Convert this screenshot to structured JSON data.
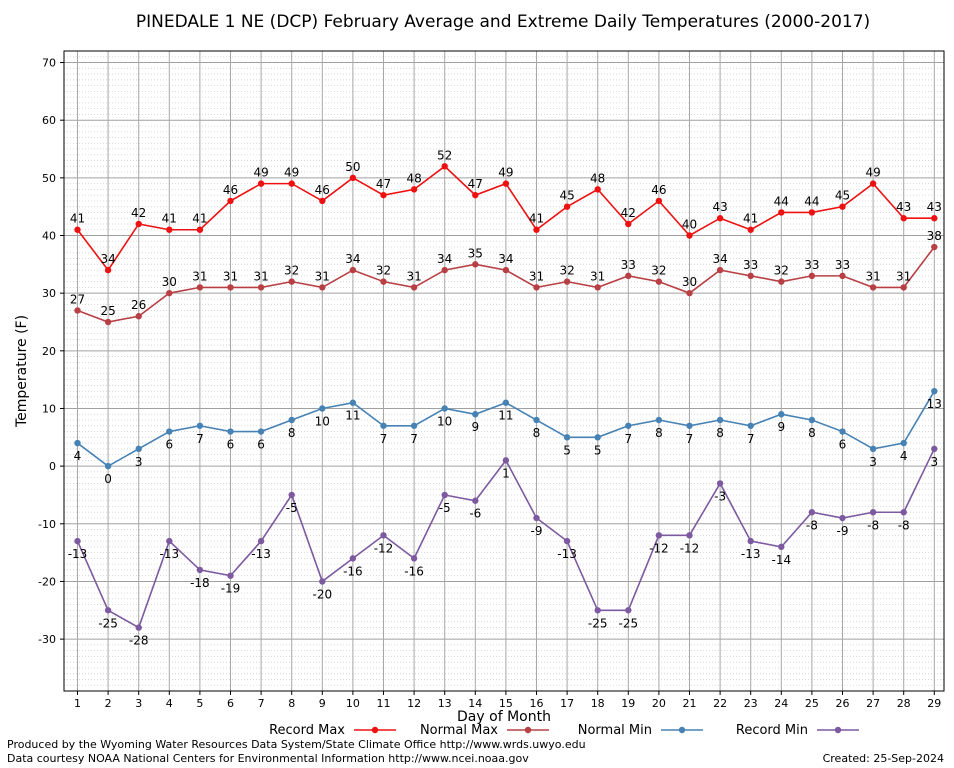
{
  "chart_data": {
    "type": "line",
    "title": "PINEDALE 1 NE (DCP) February Average and Extreme Daily Temperatures (2000-2017)",
    "xlabel": "Day of Month",
    "ylabel": "Temperature (F)",
    "ylim": [
      -39,
      72
    ],
    "yticks": [
      -30,
      -20,
      -10,
      0,
      10,
      20,
      30,
      40,
      50,
      60,
      70
    ],
    "grid": true,
    "legend_position": "bottom",
    "x": [
      1,
      2,
      3,
      4,
      5,
      6,
      7,
      8,
      9,
      10,
      11,
      12,
      13,
      14,
      15,
      16,
      17,
      18,
      19,
      20,
      21,
      22,
      23,
      24,
      25,
      26,
      27,
      28,
      29
    ],
    "series": [
      {
        "name": "Record Max",
        "color": "#ee1111",
        "label_position": "above",
        "values": [
          41,
          34,
          42,
          41,
          41,
          46,
          49,
          49,
          46,
          50,
          47,
          48,
          52,
          47,
          49,
          41,
          45,
          48,
          42,
          46,
          40,
          43,
          41,
          44,
          44,
          45,
          49,
          43,
          43
        ]
      },
      {
        "name": "Normal Max",
        "color": "#b84045",
        "label_position": "above",
        "values": [
          27,
          25,
          26,
          30,
          31,
          31,
          31,
          32,
          31,
          34,
          32,
          31,
          34,
          35,
          34,
          31,
          32,
          31,
          33,
          32,
          30,
          34,
          33,
          32,
          33,
          33,
          31,
          31,
          38
        ]
      },
      {
        "name": "Normal Min",
        "color": "#4682b4",
        "label_position": "below",
        "values": [
          4,
          0,
          3,
          6,
          7,
          6,
          6,
          8,
          10,
          11,
          7,
          7,
          10,
          9,
          11,
          8,
          5,
          5,
          7,
          8,
          7,
          8,
          7,
          9,
          8,
          6,
          3,
          4,
          13
        ]
      },
      {
        "name": "Record Min",
        "color": "#7d5aa0",
        "label_position": "below",
        "values": [
          -13,
          -25,
          -28,
          -13,
          -18,
          -19,
          -13,
          -5,
          -20,
          -16,
          -12,
          -16,
          -5,
          -6,
          1,
          -9,
          -13,
          -25,
          -25,
          -12,
          -12,
          -3,
          -13,
          -14,
          -8,
          -9,
          -8,
          -8,
          3
        ]
      }
    ]
  },
  "footer": {
    "produced_by": "Produced by the Wyoming Water Resources Data System/State Climate Office http://www.wrds.uwyo.edu",
    "courtesy": "Data courtesy NOAA National Centers for Environmental Information http://www.ncei.noaa.gov",
    "created": "Created:  25-Sep-2024"
  }
}
